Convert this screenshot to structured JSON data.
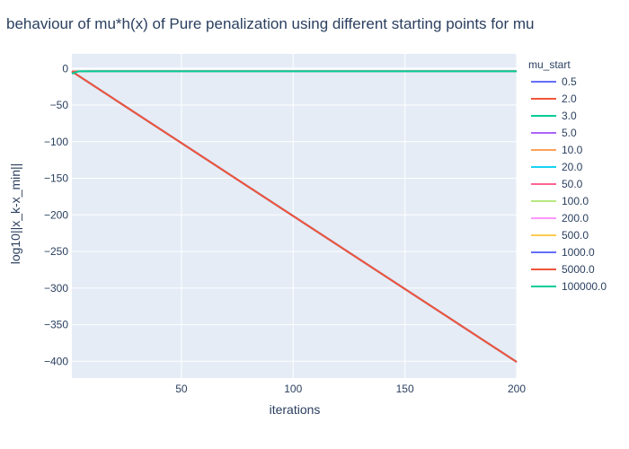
{
  "chart_data": {
    "type": "line",
    "title": "behaviour of mu*h(x) of Pure penalization using different starting points for mu",
    "xlabel": "iterations",
    "ylabel": "log10||x_k-x_min||",
    "xlim": [
      1,
      200
    ],
    "ylim": [
      -423,
      20
    ],
    "xticks": [
      50,
      100,
      150,
      200
    ],
    "yticks": [
      0,
      -50,
      -100,
      -150,
      -200,
      -250,
      -300,
      -350,
      -400
    ],
    "grid": true,
    "legend_title": "mu_start",
    "legend_position": "right",
    "series": [
      {
        "name": "0.5",
        "color": "#636efa",
        "x": [
          1,
          200
        ],
        "y": [
          -4,
          -401
        ]
      },
      {
        "name": "2.0",
        "color": "#ef553b",
        "x": [
          1,
          10,
          200
        ],
        "y": [
          -4,
          -3.5,
          -3.5
        ]
      },
      {
        "name": "3.0",
        "color": "#00cc96",
        "x": [
          1,
          200
        ],
        "y": [
          -4,
          -401
        ]
      },
      {
        "name": "5.0",
        "color": "#ab63fa",
        "x": [
          1,
          200
        ],
        "y": [
          -4,
          -401
        ]
      },
      {
        "name": "10.0",
        "color": "#ffa15a",
        "x": [
          1,
          200
        ],
        "y": [
          -4,
          -401
        ]
      },
      {
        "name": "20.0",
        "color": "#19d3f3",
        "x": [
          1,
          200
        ],
        "y": [
          -4,
          -401
        ]
      },
      {
        "name": "50.0",
        "color": "#ff6692",
        "x": [
          1,
          200
        ],
        "y": [
          -4,
          -401
        ]
      },
      {
        "name": "100.0",
        "color": "#b6e880",
        "x": [
          1,
          200
        ],
        "y": [
          -4,
          -401
        ]
      },
      {
        "name": "200.0",
        "color": "#ff97ff",
        "x": [
          1,
          200
        ],
        "y": [
          -4,
          -401
        ]
      },
      {
        "name": "500.0",
        "color": "#fecb52",
        "x": [
          1,
          200
        ],
        "y": [
          -4,
          -401
        ]
      },
      {
        "name": "1000.0",
        "color": "#636efa",
        "x": [
          1,
          200
        ],
        "y": [
          -4,
          -401
        ]
      },
      {
        "name": "5000.0",
        "color": "#ef553b",
        "x": [
          1,
          200
        ],
        "y": [
          -4,
          -401
        ]
      },
      {
        "name": "100000.0",
        "color": "#00cc96",
        "x": [
          1,
          4,
          200
        ],
        "y": [
          -7,
          -3.8,
          -3.8
        ]
      }
    ]
  }
}
